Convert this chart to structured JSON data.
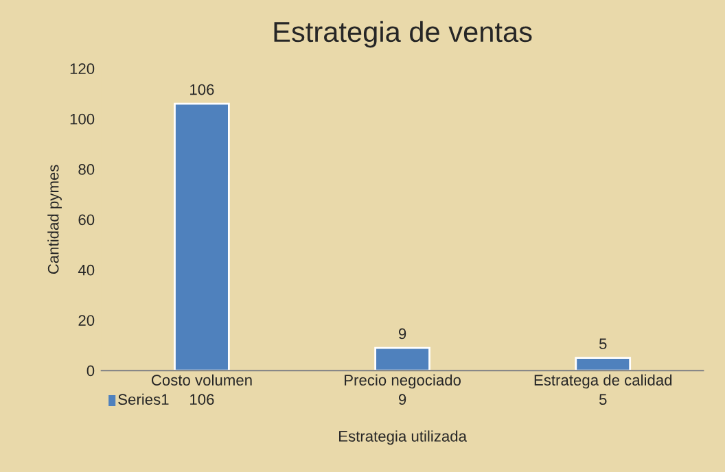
{
  "chart_data": {
    "type": "bar",
    "title": "Estrategia de ventas",
    "xlabel": "Estrategia utilizada",
    "ylabel": "Cantidad pymes",
    "categories": [
      "Costo volumen",
      "Precio negociado",
      "Estratega de calidad"
    ],
    "series": [
      {
        "name": "Series1",
        "color": "#4f81bd",
        "values": [
          106,
          9,
          5
        ]
      }
    ],
    "ylim": [
      0,
      120
    ],
    "yticks": [
      0,
      20,
      40,
      60,
      80,
      100,
      120
    ],
    "grid": false,
    "legend": "bottom",
    "data_labels": true,
    "annotations": [
      "106",
      "9",
      "5"
    ]
  }
}
